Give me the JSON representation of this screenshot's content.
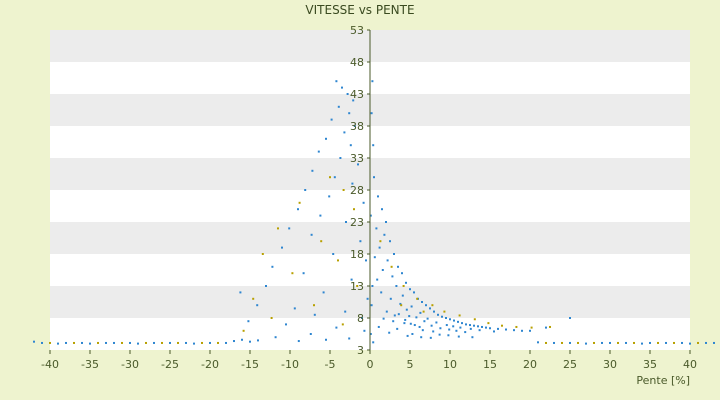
{
  "chart_data": {
    "type": "scatter",
    "title": "VITESSE vs PENTE",
    "xlabel": "Pente [%]",
    "ylabel": "",
    "xlim": [
      -40,
      40
    ],
    "ylim": [
      3,
      53
    ],
    "x_ticks": [
      "-40",
      "-35",
      "-30",
      "-25",
      "-20",
      "-15",
      "-10",
      "-5",
      "0",
      "5",
      "10",
      "15",
      "20",
      "25",
      "30",
      "35",
      "40"
    ],
    "y_ticks": [
      "3",
      "8",
      "13",
      "18",
      "23",
      "28",
      "33",
      "38",
      "43",
      "48",
      "53"
    ],
    "grid": "horizontal banded",
    "legend": "none",
    "colors": {
      "primary": "#2e86d0",
      "secondary": "#b8a000",
      "band": "#ececec",
      "plot_bg": "#ffffff",
      "axis": "#4a5a2a"
    },
    "series": [
      {
        "color": "#2e86d0",
        "points": [
          [
            -4.2,
            45
          ],
          [
            -3.5,
            44
          ],
          [
            -2.8,
            43
          ],
          [
            -2.1,
            42
          ],
          [
            -3.9,
            41
          ],
          [
            -2.6,
            40
          ],
          [
            -4.8,
            39
          ],
          [
            -1.9,
            38
          ],
          [
            -3.2,
            37
          ],
          [
            -5.5,
            36
          ],
          [
            -2.4,
            35
          ],
          [
            -6.4,
            34
          ],
          [
            -3.7,
            33
          ],
          [
            -1.5,
            32
          ],
          [
            -7.2,
            31
          ],
          [
            -4.4,
            30
          ],
          [
            -2.2,
            29
          ],
          [
            -8.1,
            28
          ],
          [
            -5.1,
            27
          ],
          [
            -0.8,
            26
          ],
          [
            -9.0,
            25
          ],
          [
            -6.2,
            24
          ],
          [
            -3.0,
            23
          ],
          [
            -10.1,
            22
          ],
          [
            -7.3,
            21
          ],
          [
            -1.2,
            20
          ],
          [
            -11.0,
            19
          ],
          [
            -4.6,
            18
          ],
          [
            -0.5,
            17
          ],
          [
            -12.2,
            16
          ],
          [
            -8.3,
            15
          ],
          [
            -2.3,
            14
          ],
          [
            -13.0,
            13
          ],
          [
            -5.8,
            12
          ],
          [
            -0.3,
            11
          ],
          [
            -14.1,
            10
          ],
          [
            -9.4,
            9.5
          ],
          [
            -3.1,
            9
          ],
          [
            -6.9,
            8.5
          ],
          [
            -1.0,
            8
          ],
          [
            -15.2,
            7.5
          ],
          [
            -10.5,
            7
          ],
          [
            -4.2,
            6.5
          ],
          [
            -0.7,
            6
          ],
          [
            -7.4,
            5.5
          ],
          [
            -11.8,
            5
          ],
          [
            -2.6,
            4.8
          ],
          [
            -5.5,
            4.6
          ],
          [
            -8.9,
            4.4
          ],
          [
            -16.2,
            12
          ],
          [
            0.5,
            30
          ],
          [
            1.0,
            27
          ],
          [
            1.5,
            25
          ],
          [
            2.0,
            23
          ],
          [
            0.8,
            22
          ],
          [
            1.8,
            21
          ],
          [
            2.5,
            20
          ],
          [
            1.2,
            19
          ],
          [
            3.0,
            18
          ],
          [
            0.6,
            17.5
          ],
          [
            2.2,
            17
          ],
          [
            3.5,
            16
          ],
          [
            1.6,
            15.5
          ],
          [
            4.0,
            15
          ],
          [
            2.8,
            14.5
          ],
          [
            0.9,
            14
          ],
          [
            4.5,
            13.5
          ],
          [
            3.3,
            13
          ],
          [
            5.0,
            12.5
          ],
          [
            1.4,
            12
          ],
          [
            5.5,
            12
          ],
          [
            4.1,
            11.5
          ],
          [
            6.0,
            11
          ],
          [
            2.6,
            11
          ],
          [
            6.5,
            10.5
          ],
          [
            3.8,
            10.2
          ],
          [
            7.0,
            10
          ],
          [
            5.2,
            9.8
          ],
          [
            7.5,
            9.5
          ],
          [
            4.6,
            9.3
          ],
          [
            8.0,
            9
          ],
          [
            6.3,
            8.8
          ],
          [
            8.5,
            8.5
          ],
          [
            3.1,
            8.4
          ],
          [
            9.0,
            8.2
          ],
          [
            5.8,
            8.1
          ],
          [
            9.5,
            8
          ],
          [
            7.2,
            7.9
          ],
          [
            10.0,
            7.8
          ],
          [
            4.4,
            7.7
          ],
          [
            10.5,
            7.6
          ],
          [
            6.8,
            7.5
          ],
          [
            11.0,
            7.4
          ],
          [
            8.3,
            7.3
          ],
          [
            11.5,
            7.2
          ],
          [
            5.1,
            7.1
          ],
          [
            12.0,
            7
          ],
          [
            9.6,
            6.9
          ],
          [
            12.5,
            6.9
          ],
          [
            7.7,
            6.8
          ],
          [
            13.0,
            6.8
          ],
          [
            10.4,
            6.7
          ],
          [
            13.5,
            6.7
          ],
          [
            6.2,
            6.6
          ],
          [
            14.0,
            6.6
          ],
          [
            11.3,
            6.5
          ],
          [
            14.5,
            6.5
          ],
          [
            8.8,
            6.4
          ],
          [
            15.0,
            6.4
          ],
          [
            12.6,
            6.3
          ],
          [
            16.0,
            6.3
          ],
          [
            9.9,
            6.2
          ],
          [
            17.0,
            6.2
          ],
          [
            13.7,
            6.1
          ],
          [
            18.0,
            6.1
          ],
          [
            10.8,
            6
          ],
          [
            19.0,
            6
          ],
          [
            15.5,
            5.9
          ],
          [
            20.0,
            6
          ],
          [
            11.9,
            5.8
          ],
          [
            2.1,
            9
          ],
          [
            3.6,
            8.6
          ],
          [
            4.9,
            8.3
          ],
          [
            1.7,
            7.9
          ],
          [
            2.9,
            7.5
          ],
          [
            4.3,
            7.2
          ],
          [
            5.6,
            6.9
          ],
          [
            1.1,
            6.6
          ],
          [
            3.4,
            6.3
          ],
          [
            6.6,
            6.1
          ],
          [
            7.9,
            5.9
          ],
          [
            2.4,
            5.7
          ],
          [
            5.3,
            5.5
          ],
          [
            8.7,
            5.4
          ],
          [
            9.8,
            5.3
          ],
          [
            4.7,
            5.2
          ],
          [
            11.1,
            5.1
          ],
          [
            6.4,
            5
          ],
          [
            12.8,
            5
          ],
          [
            7.6,
            4.9
          ],
          [
            0.3,
            45
          ],
          [
            0.2,
            40
          ],
          [
            0.4,
            35
          ],
          [
            0.1,
            24
          ],
          [
            0.3,
            13
          ],
          [
            0.2,
            10
          ],
          [
            0.1,
            5.5
          ],
          [
            0.4,
            4.2
          ],
          [
            22.0,
            6.5
          ],
          [
            25.0,
            8
          ]
        ]
      },
      {
        "color": "#b8a000",
        "points": [
          [
            -5.0,
            30
          ],
          [
            -3.3,
            28
          ],
          [
            -8.8,
            26
          ],
          [
            -2.0,
            25
          ],
          [
            -11.5,
            22
          ],
          [
            -6.1,
            20
          ],
          [
            -13.4,
            18
          ],
          [
            -4.0,
            17
          ],
          [
            -9.7,
            15
          ],
          [
            -1.6,
            13
          ],
          [
            -14.6,
            11
          ],
          [
            -7.0,
            10
          ],
          [
            -12.3,
            8
          ],
          [
            -3.4,
            7
          ],
          [
            -15.8,
            6
          ],
          [
            1.3,
            20
          ],
          [
            2.7,
            16
          ],
          [
            4.2,
            13
          ],
          [
            5.9,
            11
          ],
          [
            7.8,
            10
          ],
          [
            9.3,
            9
          ],
          [
            11.2,
            8.4
          ],
          [
            13.1,
            7.8
          ],
          [
            14.8,
            7.2
          ],
          [
            16.5,
            6.8
          ],
          [
            18.3,
            6.6
          ],
          [
            20.2,
            6.5
          ],
          [
            22.5,
            6.6
          ],
          [
            3.9,
            10
          ],
          [
            6.7,
            9
          ],
          [
            -40,
            4.1
          ],
          [
            -37,
            4.1
          ],
          [
            -34,
            4.1
          ],
          [
            -31,
            4.1
          ],
          [
            -28,
            4.1
          ],
          [
            -26,
            4.1
          ],
          [
            -24,
            4.1
          ],
          [
            -21,
            4.1
          ],
          [
            -19,
            4.1
          ],
          [
            22,
            4.1
          ],
          [
            24,
            4.1
          ],
          [
            26,
            4.1
          ],
          [
            28,
            4.1
          ],
          [
            31,
            4.1
          ],
          [
            33,
            4.1
          ],
          [
            36,
            4.1
          ],
          [
            38,
            4.1
          ],
          [
            41,
            4.1
          ]
        ]
      },
      {
        "color": "#2e86d0",
        "points": [
          [
            -42,
            4.3
          ],
          [
            -41,
            4.1
          ],
          [
            -39,
            4.0
          ],
          [
            -38,
            4.1
          ],
          [
            -36,
            4.1
          ],
          [
            -35,
            4.0
          ],
          [
            -33,
            4.1
          ],
          [
            -32,
            4.1
          ],
          [
            -30,
            4.1
          ],
          [
            -29,
            4.0
          ],
          [
            -27,
            4.1
          ],
          [
            -25,
            4.1
          ],
          [
            -23,
            4.1
          ],
          [
            -22,
            4.0
          ],
          [
            -20,
            4.1
          ],
          [
            -18,
            4.1
          ],
          [
            -17,
            4.4
          ],
          [
            -16,
            4.6
          ],
          [
            -15,
            4.3
          ],
          [
            -14,
            4.5
          ],
          [
            21,
            4.2
          ],
          [
            23,
            4.1
          ],
          [
            25,
            4.1
          ],
          [
            27,
            4.0
          ],
          [
            29,
            4.1
          ],
          [
            30,
            4.1
          ],
          [
            32,
            4.1
          ],
          [
            34,
            4.0
          ],
          [
            35,
            4.1
          ],
          [
            37,
            4.1
          ],
          [
            39,
            4.1
          ],
          [
            40,
            4.0
          ],
          [
            42,
            4.1
          ],
          [
            43,
            4.1
          ]
        ]
      }
    ]
  }
}
